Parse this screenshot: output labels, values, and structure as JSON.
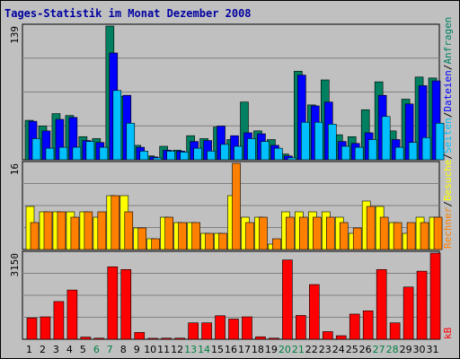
{
  "chart_data": {
    "type": "bar",
    "title": "Tages-Statistik im Monat Dezember 2008",
    "x": [
      "1",
      "2",
      "3",
      "4",
      "5",
      "6",
      "7",
      "8",
      "9",
      "10",
      "11",
      "12",
      "13",
      "14",
      "15",
      "16",
      "17",
      "18",
      "19",
      "20",
      "21",
      "22",
      "23",
      "24",
      "25",
      "26",
      "27",
      "28",
      "29",
      "30",
      "31"
    ],
    "weekend_days": [
      "6",
      "7",
      "13",
      "14",
      "20",
      "21",
      "27",
      "28"
    ],
    "panels": [
      {
        "ymax_label": "139",
        "ylim": [
          0,
          139
        ],
        "series": [
          {
            "name": "Anfragen",
            "color": "#008060",
            "values": [
              41,
              35,
              48,
              46,
              24,
              22,
              139,
              66,
              15,
              4,
              14,
              10,
              25,
              22,
              34,
              21,
              60,
              30,
              21,
              6,
              92,
              57,
              83,
              26,
              24,
              52,
              81,
              30,
              63,
              86,
              85
            ]
          },
          {
            "name": "Dateien",
            "color": "#0000ff",
            "values": [
              40,
              30,
              42,
              44,
              20,
              18,
              111,
              67,
              13,
              3,
              10,
              9,
              19,
              20,
              35,
              25,
              28,
              27,
              15,
              4,
              88,
              56,
              60,
              19,
              17,
              28,
              67,
              21,
              58,
              77,
              82
            ]
          },
          {
            "name": "Seiten",
            "color": "#00c0ff",
            "values": [
              22,
              12,
              13,
              13,
              19,
              13,
              72,
              38,
              9,
              2,
              9,
              8,
              12,
              9,
              16,
              14,
              22,
              19,
              12,
              2,
              39,
              39,
              37,
              14,
              13,
              21,
              45,
              13,
              18,
              23,
              38
            ]
          }
        ]
      },
      {
        "ymax_label": "16",
        "ylim": [
          0,
          16
        ],
        "series": [
          {
            "name": "Besuche",
            "color": "#ffff00",
            "values": [
              8,
              7,
              7,
              7,
              7,
              6,
              10,
              10,
              4,
              2,
              6,
              5,
              5,
              3,
              3,
              10,
              6,
              6,
              1,
              7,
              7,
              7,
              7,
              6,
              3,
              9,
              8,
              5,
              3,
              6,
              6
            ]
          },
          {
            "name": "Rechner",
            "color": "#ff8000",
            "values": [
              5,
              7,
              7,
              6,
              7,
              7,
              10,
              7,
              4,
              2,
              6,
              5,
              5,
              3,
              3,
              16,
              5,
              6,
              2,
              6,
              6,
              6,
              6,
              5,
              4,
              8,
              6,
              5,
              5,
              5,
              6
            ]
          }
        ]
      },
      {
        "ymax_label": "3150",
        "ylim": [
          0,
          3150
        ],
        "series": [
          {
            "name": "kB",
            "color": "#ff0000",
            "values": [
              780,
              820,
              1380,
              1800,
              80,
              40,
              2650,
              2550,
              250,
              35,
              40,
              40,
              600,
              600,
              860,
              740,
              820,
              90,
              40,
              2900,
              870,
              2000,
              280,
              130,
              920,
              1040,
              2550,
              600,
              1910,
              2490,
              3150
            ]
          }
        ]
      }
    ],
    "legend_right": {
      "top": [
        {
          "text": "Anfragen",
          "color": "#008060"
        },
        {
          "text": "/",
          "color": "#000000"
        },
        {
          "text": "Dateien",
          "color": "#0000ff"
        },
        {
          "text": "/",
          "color": "#000000"
        },
        {
          "text": "Seiten",
          "color": "#00c0ff"
        },
        {
          "text": "/",
          "color": "#000000"
        },
        {
          "text": "Besuche",
          "color": "#ffff00"
        },
        {
          "text": "/",
          "color": "#000000"
        },
        {
          "text": "Rechner",
          "color": "#ff8000"
        }
      ],
      "bottom": {
        "text": "kB",
        "color": "#ff0000"
      }
    },
    "grid": true,
    "colors": {
      "background": "#c0c0c0",
      "panel": "#c0c0c0",
      "grid": "#808080",
      "weekday_label": "#000000",
      "weekend_label": "#008040"
    }
  }
}
